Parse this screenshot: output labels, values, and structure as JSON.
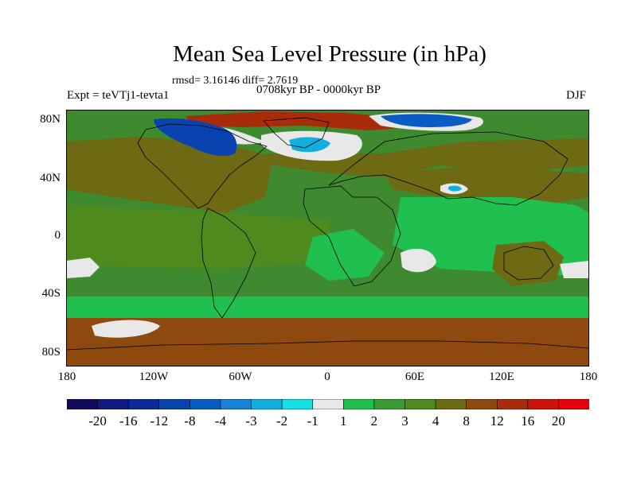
{
  "title": "Mean Sea Level Pressure (in hPa)",
  "stats": "rmsd= 3.16146 diff= 2.7619",
  "period": "0708kyr BP - 0000kyr BP",
  "experiment": "Expt = teVTj1-tevta1",
  "season": "DJF",
  "latitude_labels": [
    "80N",
    "40N",
    "0",
    "40S",
    "80S"
  ],
  "longitude_labels": [
    "180",
    "120W",
    "60W",
    "0",
    "60E",
    "120E",
    "180"
  ],
  "colorbar": {
    "labels": [
      "-20",
      "-16",
      "-12",
      "-8",
      "-4",
      "-3",
      "-2",
      "-1",
      "1",
      "2",
      "3",
      "4",
      "8",
      "12",
      "16",
      "20"
    ],
    "colors": [
      "#120a5a",
      "#101a80",
      "#0b2a9a",
      "#0a42b0",
      "#0a5cc4",
      "#1a82d6",
      "#12aede",
      "#16dfe6",
      "#e8e8e8",
      "#20c050",
      "#3a9c30",
      "#4e8a1e",
      "#6e6a14",
      "#8e4a0e",
      "#a82c0a",
      "#cc140a",
      "#e6000a"
    ]
  },
  "map": {
    "background_color": "#3f8a2e",
    "regions": [
      {
        "name": "n-pacific-high",
        "color": "#6e6a14"
      },
      {
        "name": "n-atlantic-band",
        "color": "#6e6a14"
      },
      {
        "name": "asia-high",
        "color": "#6e6a14"
      },
      {
        "name": "tropical-pacific",
        "color": "#4e8a1e"
      },
      {
        "name": "indian-ocean",
        "color": "#20c050"
      },
      {
        "name": "south-atlantic",
        "color": "#20c050"
      },
      {
        "name": "australia",
        "color": "#6e6a14"
      },
      {
        "name": "southern-ocean-band",
        "color": "#20c050"
      },
      {
        "name": "antarctic-band",
        "color": "#8e4a0e"
      },
      {
        "name": "arctic-high",
        "color": "#a82c0a"
      },
      {
        "name": "north-america-low",
        "color": "#0a42b0"
      },
      {
        "name": "greenland-low",
        "color": "#12aede"
      },
      {
        "name": "siberia-low",
        "color": "#0a5cc4"
      },
      {
        "name": "tibet-low",
        "color": "#12aede"
      },
      {
        "name": "pacific-near-zero",
        "color": "#e8e8e8"
      },
      {
        "name": "indian-near-zero",
        "color": "#e8e8e8"
      },
      {
        "name": "south-pacific-near-zero",
        "color": "#e8e8e8"
      }
    ]
  }
}
